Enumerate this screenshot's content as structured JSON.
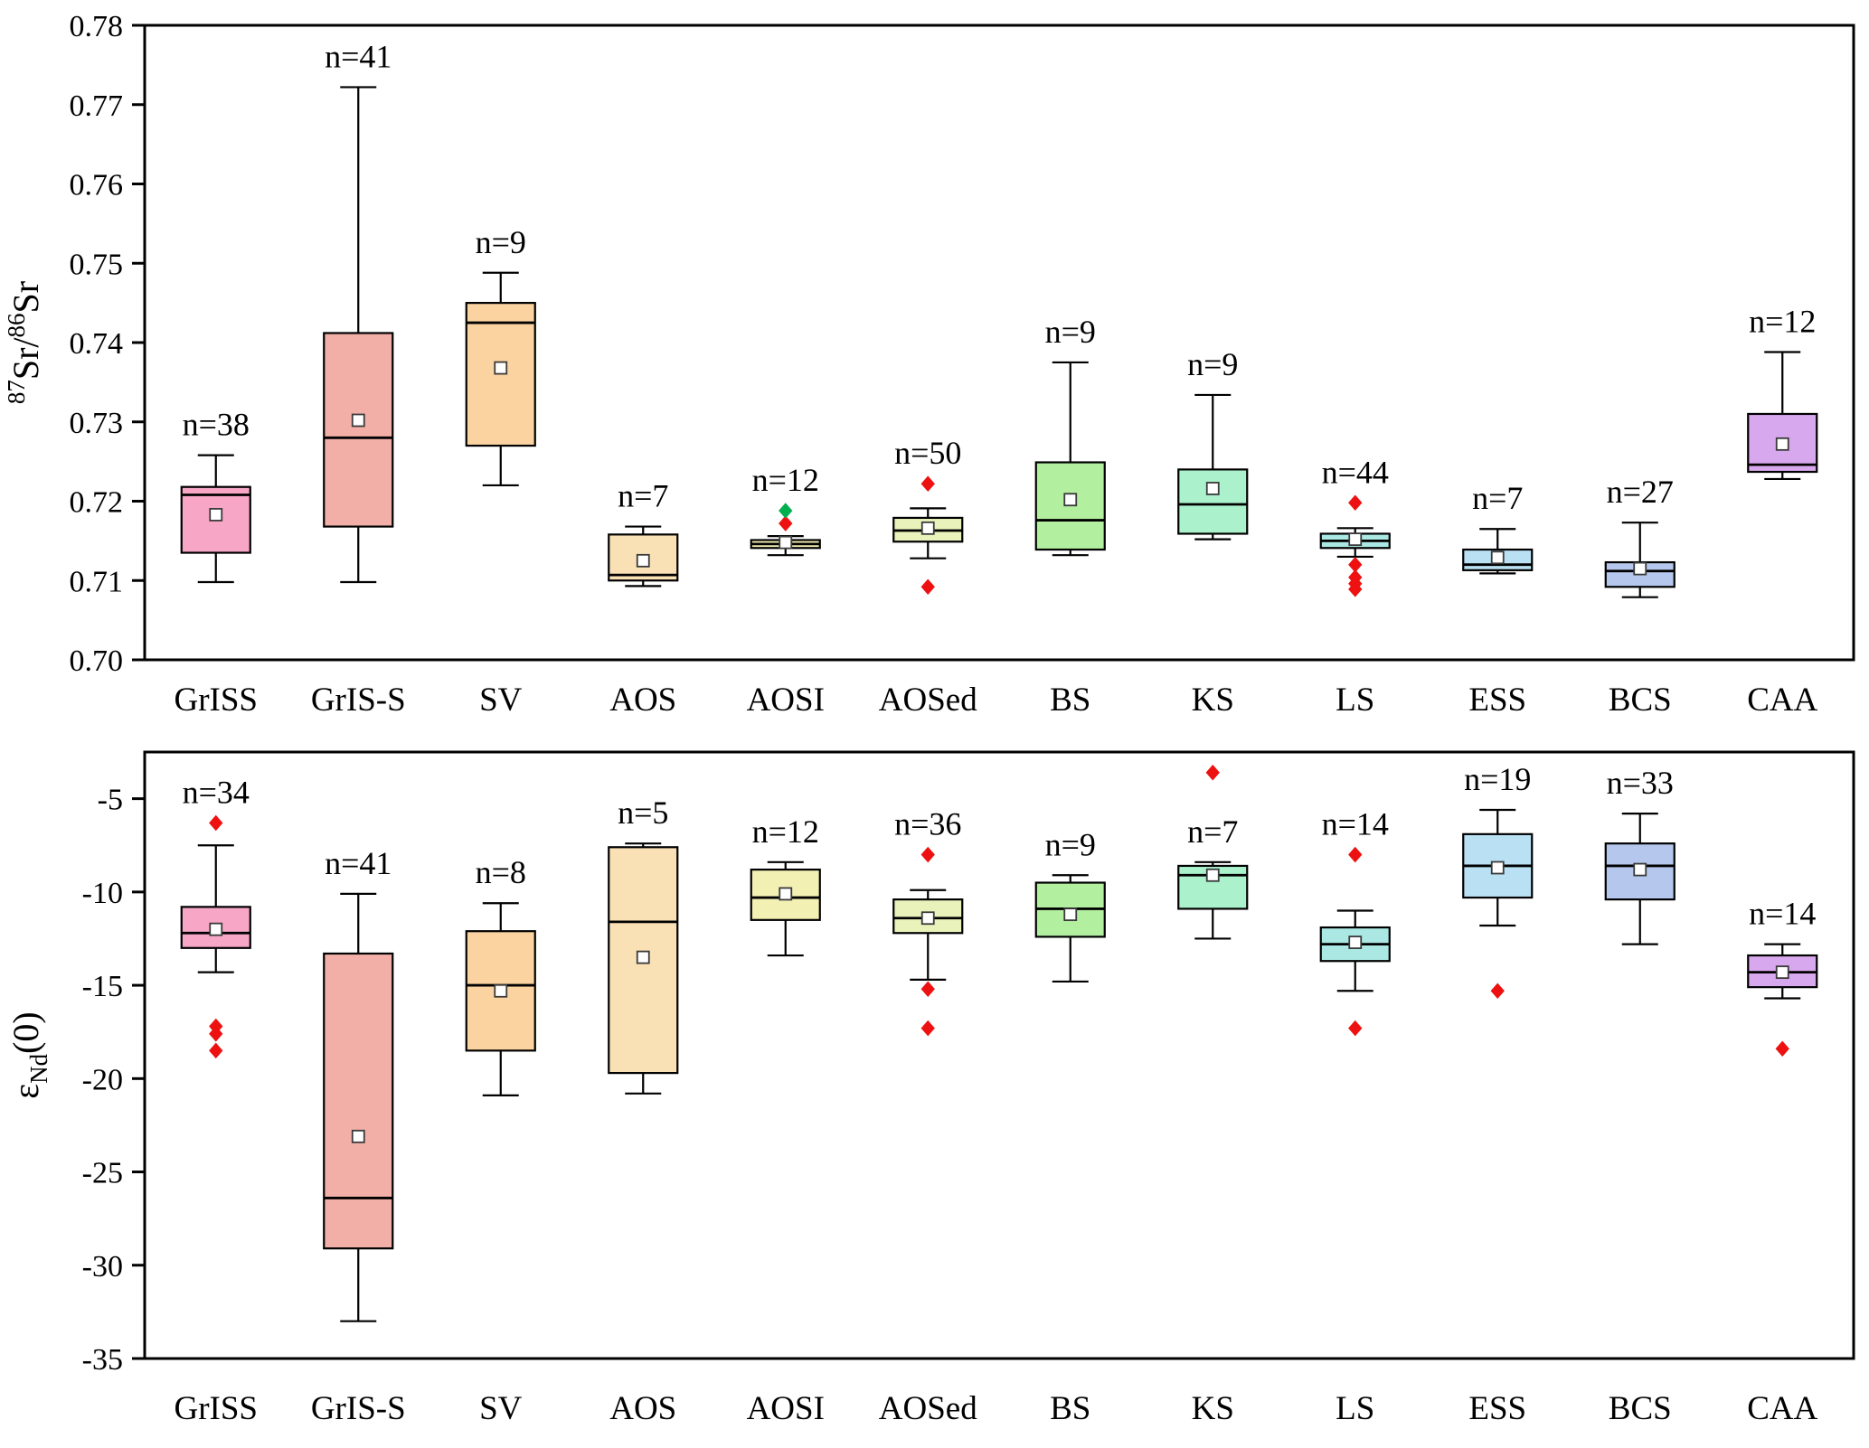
{
  "figure": {
    "background": "#ffffff"
  },
  "colors": {
    "outlier_red": "#ee1111",
    "outlier_green": "#00b050",
    "mean_fill": "#ffffff",
    "mean_stroke": "#3a3a3a",
    "stroke": "#000000"
  },
  "chart_data": [
    {
      "id": "sr-isotope",
      "type": "box",
      "y_label": "87Sr/86Sr",
      "y_label_parts": [
        {
          "text": "87",
          "script": "super"
        },
        {
          "text": "Sr/",
          "script": "normal"
        },
        {
          "text": "86",
          "script": "super"
        },
        {
          "text": "Sr",
          "script": "normal"
        }
      ],
      "ylim": [
        0.7,
        0.78
      ],
      "yticks": [
        {
          "value": 0.7,
          "label": "0.70"
        },
        {
          "value": 0.71,
          "label": "0.71"
        },
        {
          "value": 0.72,
          "label": "0.72"
        },
        {
          "value": 0.73,
          "label": "0.73"
        },
        {
          "value": 0.74,
          "label": "0.74"
        },
        {
          "value": 0.75,
          "label": "0.75"
        },
        {
          "value": 0.76,
          "label": "0.76"
        },
        {
          "value": 0.77,
          "label": "0.77"
        },
        {
          "value": 0.78,
          "label": "0.78"
        }
      ],
      "categories": [
        "GrISS",
        "GrIS-S",
        "SV",
        "AOS",
        "AOSI",
        "AOSed",
        "BS",
        "KS",
        "LS",
        "ESS",
        "BCS",
        "CAA"
      ],
      "boxes": [
        {
          "n_label": "n=38",
          "color": "#f7a6c6",
          "whisker_low": 0.7098,
          "q1": 0.7135,
          "median": 0.7208,
          "q3": 0.7218,
          "whisker_high": 0.7258,
          "mean": 0.7183,
          "outliers": []
        },
        {
          "n_label": "n=41",
          "color": "#f2afa7",
          "whisker_low": 0.7098,
          "q1": 0.7168,
          "median": 0.728,
          "q3": 0.7412,
          "whisker_high": 0.7722,
          "mean": 0.7302,
          "outliers": []
        },
        {
          "n_label": "n=9",
          "color": "#fad3a0",
          "whisker_low": 0.722,
          "q1": 0.727,
          "median": 0.7425,
          "q3": 0.745,
          "whisker_high": 0.7488,
          "mean": 0.7368,
          "outliers": []
        },
        {
          "n_label": "n=7",
          "color": "#fae0b5",
          "whisker_low": 0.7093,
          "q1": 0.71,
          "median": 0.7107,
          "q3": 0.7158,
          "whisker_high": 0.7168,
          "mean": 0.7125,
          "outliers": []
        },
        {
          "n_label": "n=12",
          "color": "#f3f0b4",
          "whisker_low": 0.7132,
          "q1": 0.7141,
          "median": 0.7146,
          "q3": 0.7151,
          "whisker_high": 0.7156,
          "mean": 0.7148,
          "outliers": [
            {
              "value": 0.7172,
              "color": "#ee1111"
            },
            {
              "value": 0.7188,
              "color": "#00b050"
            }
          ]
        },
        {
          "n_label": "n=50",
          "color": "#e9f2ba",
          "whisker_low": 0.7128,
          "q1": 0.7149,
          "median": 0.7163,
          "q3": 0.7179,
          "whisker_high": 0.7191,
          "mean": 0.7166,
          "outliers": [
            {
              "value": 0.7222,
              "color": "#ee1111"
            },
            {
              "value": 0.7092,
              "color": "#ee1111"
            }
          ]
        },
        {
          "n_label": "n=9",
          "color": "#b2ef9f",
          "whisker_low": 0.7132,
          "q1": 0.7139,
          "median": 0.7176,
          "q3": 0.7249,
          "whisker_high": 0.7375,
          "mean": 0.7202,
          "outliers": []
        },
        {
          "n_label": "n=9",
          "color": "#aaf1cc",
          "whisker_low": 0.7152,
          "q1": 0.7159,
          "median": 0.7196,
          "q3": 0.724,
          "whisker_high": 0.7334,
          "mean": 0.7216,
          "outliers": []
        },
        {
          "n_label": "n=44",
          "color": "#abe8e3",
          "whisker_low": 0.713,
          "q1": 0.7141,
          "median": 0.715,
          "q3": 0.7159,
          "whisker_high": 0.7166,
          "mean": 0.7152,
          "outliers": [
            {
              "value": 0.7198,
              "color": "#ee1111"
            },
            {
              "value": 0.712,
              "color": "#ee1111"
            },
            {
              "value": 0.7104,
              "color": "#ee1111"
            },
            {
              "value": 0.7096,
              "color": "#ee1111"
            },
            {
              "value": 0.7089,
              "color": "#ee1111"
            }
          ]
        },
        {
          "n_label": "n=7",
          "color": "#bae1f3",
          "whisker_low": 0.7109,
          "q1": 0.7113,
          "median": 0.712,
          "q3": 0.7139,
          "whisker_high": 0.7165,
          "mean": 0.7129,
          "outliers": []
        },
        {
          "n_label": "n=27",
          "color": "#b5c7ec",
          "whisker_low": 0.7079,
          "q1": 0.7092,
          "median": 0.7112,
          "q3": 0.7123,
          "whisker_high": 0.7173,
          "mean": 0.7115,
          "outliers": []
        },
        {
          "n_label": "n=12",
          "color": "#d8a8ee",
          "whisker_low": 0.7228,
          "q1": 0.7237,
          "median": 0.7246,
          "q3": 0.731,
          "whisker_high": 0.7388,
          "mean": 0.7272,
          "outliers": []
        }
      ]
    },
    {
      "id": "epsilon-nd",
      "type": "box",
      "y_label": "εNd(0)",
      "y_label_parts": [
        {
          "text": "ε",
          "script": "normal"
        },
        {
          "text": "Nd",
          "script": "sub"
        },
        {
          "text": "(0)",
          "script": "normal"
        }
      ],
      "ylim": [
        -35,
        -2.5
      ],
      "yticks": [
        {
          "value": -5,
          "label": "-5"
        },
        {
          "value": -10,
          "label": "-10"
        },
        {
          "value": -15,
          "label": "-15"
        },
        {
          "value": -20,
          "label": "-20"
        },
        {
          "value": -25,
          "label": "-25"
        },
        {
          "value": -30,
          "label": "-30"
        },
        {
          "value": -35,
          "label": "-35"
        }
      ],
      "categories": [
        "GrISS",
        "GrIS-S",
        "SV",
        "AOS",
        "AOSI",
        "AOSed",
        "BS",
        "KS",
        "LS",
        "ESS",
        "BCS",
        "CAA"
      ],
      "boxes": [
        {
          "n_label": "n=34",
          "color": "#f7a6c6",
          "whisker_low": -14.3,
          "q1": -13.0,
          "median": -12.2,
          "q3": -10.8,
          "whisker_high": -7.5,
          "mean": -12.0,
          "outliers": [
            {
              "value": -6.3,
              "color": "#ee1111"
            },
            {
              "value": -17.2,
              "color": "#ee1111"
            },
            {
              "value": -17.6,
              "color": "#ee1111"
            },
            {
              "value": -18.5,
              "color": "#ee1111"
            }
          ]
        },
        {
          "n_label": "n=41",
          "color": "#f2afa7",
          "whisker_low": -33.0,
          "q1": -29.1,
          "median": -26.4,
          "q3": -13.3,
          "whisker_high": -10.1,
          "mean": -23.1,
          "outliers": []
        },
        {
          "n_label": "n=8",
          "color": "#fad3a0",
          "whisker_low": -20.9,
          "q1": -18.5,
          "median": -15.0,
          "q3": -12.1,
          "whisker_high": -10.6,
          "mean": -15.3,
          "outliers": []
        },
        {
          "n_label": "n=5",
          "color": "#fae0b5",
          "whisker_low": -20.8,
          "q1": -19.7,
          "median": -11.6,
          "q3": -7.6,
          "whisker_high": -7.4,
          "mean": -13.5,
          "outliers": []
        },
        {
          "n_label": "n=12",
          "color": "#f3f0b4",
          "whisker_low": -13.4,
          "q1": -11.5,
          "median": -10.3,
          "q3": -8.8,
          "whisker_high": -8.4,
          "mean": -10.1,
          "outliers": []
        },
        {
          "n_label": "n=36",
          "color": "#e9f2ba",
          "whisker_low": -14.7,
          "q1": -12.2,
          "median": -11.4,
          "q3": -10.4,
          "whisker_high": -9.9,
          "mean": -11.4,
          "outliers": [
            {
              "value": -8.0,
              "color": "#ee1111"
            },
            {
              "value": -15.2,
              "color": "#ee1111"
            },
            {
              "value": -17.3,
              "color": "#ee1111"
            }
          ]
        },
        {
          "n_label": "n=9",
          "color": "#b2ef9f",
          "whisker_low": -14.8,
          "q1": -12.4,
          "median": -10.9,
          "q3": -9.5,
          "whisker_high": -9.1,
          "mean": -11.2,
          "outliers": []
        },
        {
          "n_label": "n=7",
          "color": "#aaf1cc",
          "whisker_low": -12.5,
          "q1": -10.9,
          "median": -9.1,
          "q3": -8.6,
          "whisker_high": -8.4,
          "mean": -9.1,
          "outliers": [
            {
              "value": -3.6,
              "color": "#ee1111"
            }
          ]
        },
        {
          "n_label": "n=14",
          "color": "#abe8e3",
          "whisker_low": -15.3,
          "q1": -13.7,
          "median": -12.8,
          "q3": -11.9,
          "whisker_high": -11.0,
          "mean": -12.7,
          "outliers": [
            {
              "value": -8.0,
              "color": "#ee1111"
            },
            {
              "value": -17.3,
              "color": "#ee1111"
            }
          ]
        },
        {
          "n_label": "n=19",
          "color": "#bae1f3",
          "whisker_low": -11.8,
          "q1": -10.3,
          "median": -8.6,
          "q3": -6.9,
          "whisker_high": -5.6,
          "mean": -8.7,
          "outliers": [
            {
              "value": -15.3,
              "color": "#ee1111"
            }
          ]
        },
        {
          "n_label": "n=33",
          "color": "#b5c7ec",
          "whisker_low": -12.8,
          "q1": -10.4,
          "median": -8.6,
          "q3": -7.4,
          "whisker_high": -5.8,
          "mean": -8.8,
          "outliers": []
        },
        {
          "n_label": "n=14",
          "color": "#d8a8ee",
          "whisker_low": -15.7,
          "q1": -15.1,
          "median": -14.3,
          "q3": -13.4,
          "whisker_high": -12.8,
          "mean": -14.3,
          "outliers": [
            {
              "value": -18.4,
              "color": "#ee1111"
            }
          ]
        }
      ]
    }
  ]
}
